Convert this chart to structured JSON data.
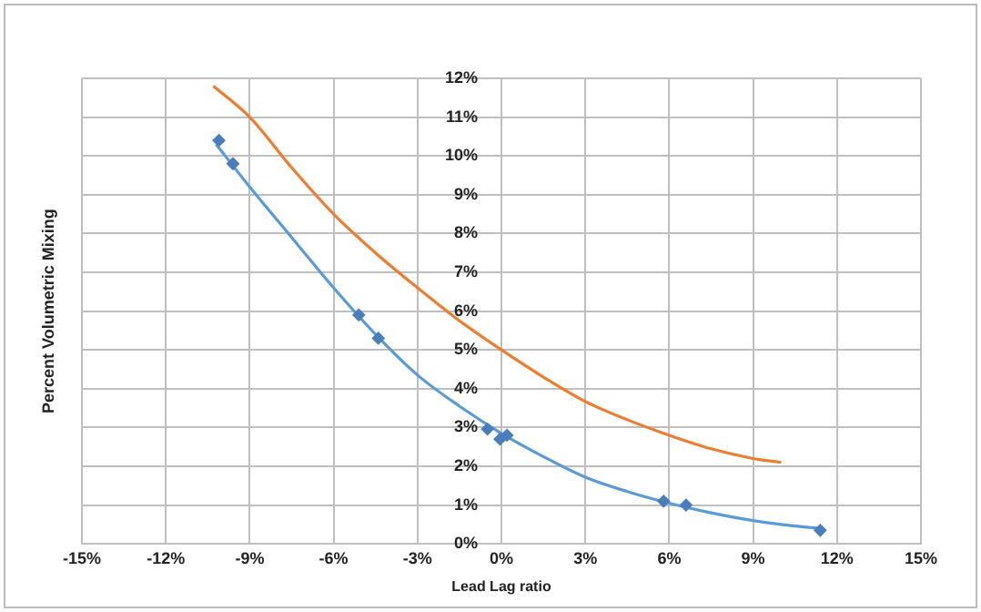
{
  "chart_data": {
    "type": "scatter",
    "xlabel": "Lead Lag ratio",
    "ylabel": "Percent Volumetric Mixing",
    "xlim": [
      -15,
      15
    ],
    "ylim": [
      0,
      12
    ],
    "xticks": [
      {
        "value": -15,
        "label": "-15%"
      },
      {
        "value": -12,
        "label": "-12%"
      },
      {
        "value": -9,
        "label": "-9%"
      },
      {
        "value": -6,
        "label": "-6%"
      },
      {
        "value": -3,
        "label": "-3%"
      },
      {
        "value": 0,
        "label": "0%"
      },
      {
        "value": 3,
        "label": "3%"
      },
      {
        "value": 6,
        "label": "6%"
      },
      {
        "value": 9,
        "label": "9%"
      },
      {
        "value": 12,
        "label": "12%"
      },
      {
        "value": 15,
        "label": "15%"
      }
    ],
    "yticks": [
      {
        "value": 0,
        "label": "0%"
      },
      {
        "value": 1,
        "label": "1%"
      },
      {
        "value": 2,
        "label": "2%"
      },
      {
        "value": 3,
        "label": "3%"
      },
      {
        "value": 4,
        "label": "4%"
      },
      {
        "value": 5,
        "label": "5%"
      },
      {
        "value": 6,
        "label": "6%"
      },
      {
        "value": 7,
        "label": "7%"
      },
      {
        "value": 8,
        "label": "8%"
      },
      {
        "value": 9,
        "label": "9%"
      },
      {
        "value": 10,
        "label": "10%"
      },
      {
        "value": 11,
        "label": "11%"
      },
      {
        "value": 12,
        "label": "12%"
      }
    ],
    "grid": true,
    "legend": false,
    "series": [
      {
        "type": "scatter",
        "marker": "diamond",
        "color": "#4a7ebb",
        "x": [
          -10.1,
          -9.6,
          -5.1,
          -4.4,
          -0.5,
          -0.05,
          0.2,
          5.8,
          6.6,
          11.4
        ],
        "values": [
          10.4,
          9.8,
          5.9,
          5.3,
          2.96,
          2.7,
          2.8,
          1.1,
          1.0,
          0.35
        ]
      },
      {
        "type": "line",
        "marker": "none",
        "color": "#5b9bd5",
        "x": [
          -10.2,
          -9,
          -7.5,
          -6,
          -4.5,
          -3,
          -1.5,
          0,
          1.5,
          3,
          4.5,
          6,
          7.5,
          9,
          10.5,
          11.4
        ],
        "values": [
          10.3,
          9.2,
          7.9,
          6.6,
          5.4,
          4.35,
          3.55,
          2.85,
          2.25,
          1.72,
          1.35,
          1.05,
          0.8,
          0.6,
          0.46,
          0.4
        ]
      },
      {
        "type": "line",
        "marker": "none",
        "color": "#ed7d31",
        "x": [
          -10.3,
          -9,
          -7.5,
          -6,
          -4.5,
          -3,
          -1.5,
          0,
          1.5,
          3,
          4.5,
          6,
          7.5,
          9,
          10
        ],
        "values": [
          11.8,
          11.0,
          9.7,
          8.5,
          7.5,
          6.6,
          5.75,
          5.0,
          4.3,
          3.67,
          3.2,
          2.8,
          2.45,
          2.2,
          2.1
        ]
      }
    ]
  }
}
